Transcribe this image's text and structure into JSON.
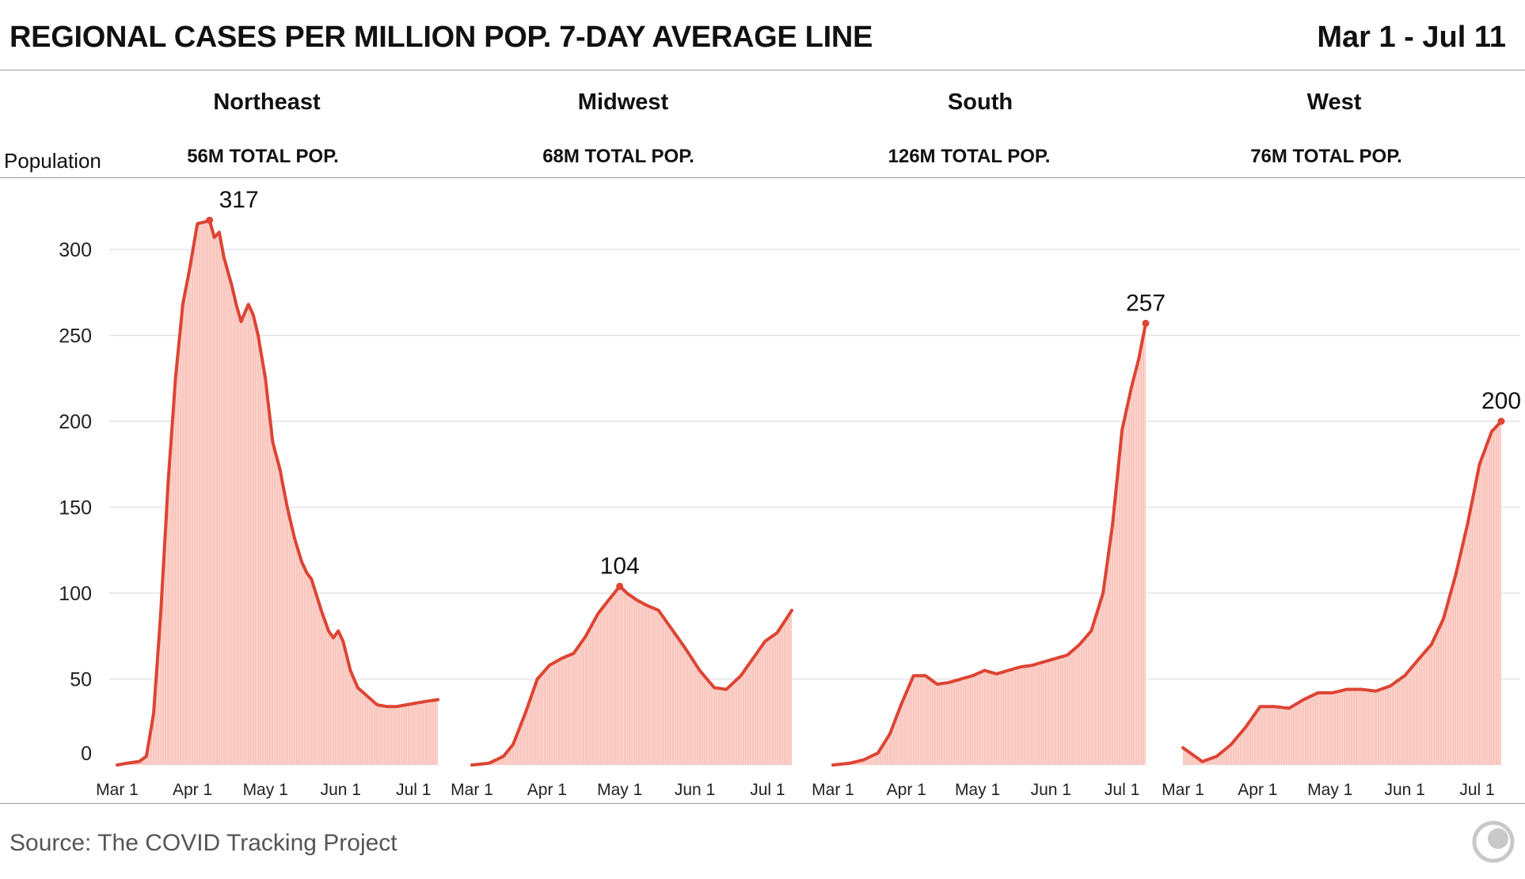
{
  "header": {
    "title": "REGIONAL CASES PER MILLION POP. 7-DAY AVERAGE LINE",
    "date_range": "Mar 1 - Jul 11"
  },
  "population_row_label": "Population",
  "regions": [
    {
      "name": "Northeast",
      "population": "56M TOTAL POP."
    },
    {
      "name": "Midwest",
      "population": "68M TOTAL POP."
    },
    {
      "name": "South",
      "population": "126M TOTAL POP."
    },
    {
      "name": "West",
      "population": "76M TOTAL POP."
    }
  ],
  "footer": {
    "source": "Source: The COVID Tracking Project",
    "logo_icon": "covid-tracking-project-logo-icon"
  },
  "colors": {
    "line": "#dd4433",
    "fill": "#f9c3ba",
    "grid": "#e4e4e4",
    "rule": "#9a9a9a"
  },
  "chart_data": {
    "type": "area",
    "ylim": [
      0,
      330
    ],
    "yticks": [
      0,
      50,
      100,
      150,
      200,
      250,
      300
    ],
    "x_tick_labels": [
      "Mar 1",
      "Apr 1",
      "May 1",
      "Jun 1",
      "Jul 1"
    ],
    "x_tick_dates": [
      "2020-03-01",
      "2020-04-01",
      "2020-05-01",
      "2020-06-01",
      "2020-07-01"
    ],
    "x_range": [
      "2020-03-01",
      "2020-07-11"
    ],
    "grid": "horizontal",
    "series": [
      {
        "name": "Northeast",
        "peak_label": "317",
        "x": [
          "2020-03-01",
          "2020-03-05",
          "2020-03-10",
          "2020-03-13",
          "2020-03-16",
          "2020-03-19",
          "2020-03-22",
          "2020-03-25",
          "2020-03-28",
          "2020-03-31",
          "2020-04-03",
          "2020-04-06",
          "2020-04-08",
          "2020-04-10",
          "2020-04-12",
          "2020-04-14",
          "2020-04-17",
          "2020-04-19",
          "2020-04-21",
          "2020-04-24",
          "2020-04-26",
          "2020-04-28",
          "2020-05-01",
          "2020-05-04",
          "2020-05-07",
          "2020-05-10",
          "2020-05-13",
          "2020-05-16",
          "2020-05-18",
          "2020-05-20",
          "2020-05-24",
          "2020-05-27",
          "2020-05-29",
          "2020-05-31",
          "2020-06-02",
          "2020-06-05",
          "2020-06-08",
          "2020-06-12",
          "2020-06-16",
          "2020-06-20",
          "2020-06-24",
          "2020-06-28",
          "2020-07-02",
          "2020-07-06",
          "2020-07-11"
        ],
        "y": [
          0,
          1,
          2,
          5,
          30,
          90,
          165,
          225,
          268,
          290,
          315,
          316,
          317,
          307,
          310,
          295,
          280,
          268,
          258,
          268,
          262,
          250,
          225,
          188,
          172,
          150,
          132,
          118,
          112,
          108,
          90,
          78,
          74,
          78,
          72,
          55,
          45,
          40,
          35,
          34,
          34,
          35,
          36,
          37,
          38
        ]
      },
      {
        "name": "Midwest",
        "peak_label": "104",
        "x": [
          "2020-03-01",
          "2020-03-08",
          "2020-03-14",
          "2020-03-18",
          "2020-03-23",
          "2020-03-28",
          "2020-04-02",
          "2020-04-07",
          "2020-04-12",
          "2020-04-17",
          "2020-04-22",
          "2020-04-27",
          "2020-05-01",
          "2020-05-04",
          "2020-05-08",
          "2020-05-12",
          "2020-05-17",
          "2020-05-22",
          "2020-05-28",
          "2020-06-03",
          "2020-06-09",
          "2020-06-14",
          "2020-06-20",
          "2020-06-25",
          "2020-06-30",
          "2020-07-05",
          "2020-07-11"
        ],
        "y": [
          0,
          1,
          5,
          12,
          30,
          50,
          58,
          62,
          65,
          75,
          88,
          97,
          104,
          100,
          96,
          93,
          90,
          80,
          68,
          55,
          45,
          44,
          52,
          62,
          72,
          77,
          90
        ]
      },
      {
        "name": "South",
        "peak_label": "257",
        "x": [
          "2020-03-01",
          "2020-03-08",
          "2020-03-14",
          "2020-03-20",
          "2020-03-25",
          "2020-03-30",
          "2020-04-04",
          "2020-04-09",
          "2020-04-14",
          "2020-04-19",
          "2020-04-24",
          "2020-04-29",
          "2020-05-04",
          "2020-05-09",
          "2020-05-14",
          "2020-05-19",
          "2020-05-24",
          "2020-05-29",
          "2020-06-03",
          "2020-06-08",
          "2020-06-13",
          "2020-06-18",
          "2020-06-23",
          "2020-06-27",
          "2020-07-01",
          "2020-07-05",
          "2020-07-08",
          "2020-07-11"
        ],
        "y": [
          0,
          1,
          3,
          7,
          18,
          36,
          52,
          52,
          47,
          48,
          50,
          52,
          55,
          53,
          55,
          57,
          58,
          60,
          62,
          64,
          70,
          78,
          100,
          140,
          195,
          220,
          236,
          257
        ]
      },
      {
        "name": "West",
        "peak_label": "200",
        "x": [
          "2020-03-01",
          "2020-03-04",
          "2020-03-09",
          "2020-03-15",
          "2020-03-21",
          "2020-03-27",
          "2020-04-02",
          "2020-04-08",
          "2020-04-14",
          "2020-04-20",
          "2020-04-26",
          "2020-05-02",
          "2020-05-08",
          "2020-05-14",
          "2020-05-20",
          "2020-05-26",
          "2020-06-01",
          "2020-06-07",
          "2020-06-12",
          "2020-06-17",
          "2020-06-22",
          "2020-06-27",
          "2020-07-02",
          "2020-07-07",
          "2020-07-11"
        ],
        "y": [
          10,
          7,
          2,
          5,
          12,
          22,
          34,
          34,
          33,
          38,
          42,
          42,
          44,
          44,
          43,
          46,
          52,
          62,
          70,
          85,
          110,
          140,
          175,
          194,
          200
        ]
      }
    ]
  }
}
